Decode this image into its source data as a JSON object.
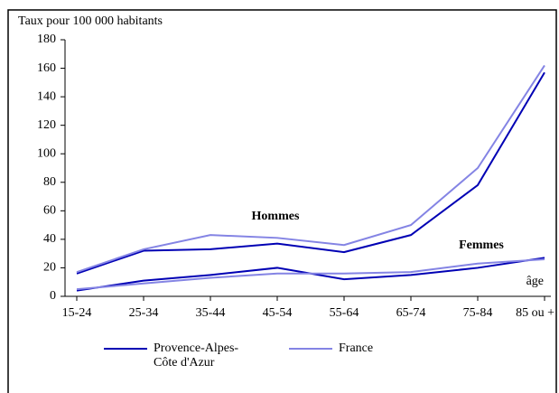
{
  "chart_data": {
    "type": "line",
    "y_label": "Taux pour 100 000 habitants",
    "x_label": "âge",
    "groups": [
      "Hommes",
      "Femmes"
    ],
    "categories": [
      "15-24",
      "25-34",
      "35-44",
      "45-54",
      "55-64",
      "65-74",
      "75-84",
      "85 ou +"
    ],
    "series": [
      {
        "name": "Provence-Alpes-Côte d'Azur",
        "color": "#0000b4",
        "values": [
          [
            16,
            32,
            33,
            37,
            31,
            43,
            78,
            157
          ],
          [
            4,
            11,
            15,
            20,
            12,
            15,
            20,
            27
          ]
        ]
      },
      {
        "name": "France",
        "color": "#8484e4",
        "values": [
          [
            17,
            33,
            43,
            41,
            36,
            50,
            90,
            162
          ],
          [
            5,
            9,
            13,
            16,
            16,
            17,
            23,
            26
          ]
        ]
      }
    ],
    "ylim": [
      0,
      180
    ],
    "yticks": [
      0,
      20,
      40,
      60,
      80,
      100,
      120,
      140,
      160,
      180
    ]
  }
}
